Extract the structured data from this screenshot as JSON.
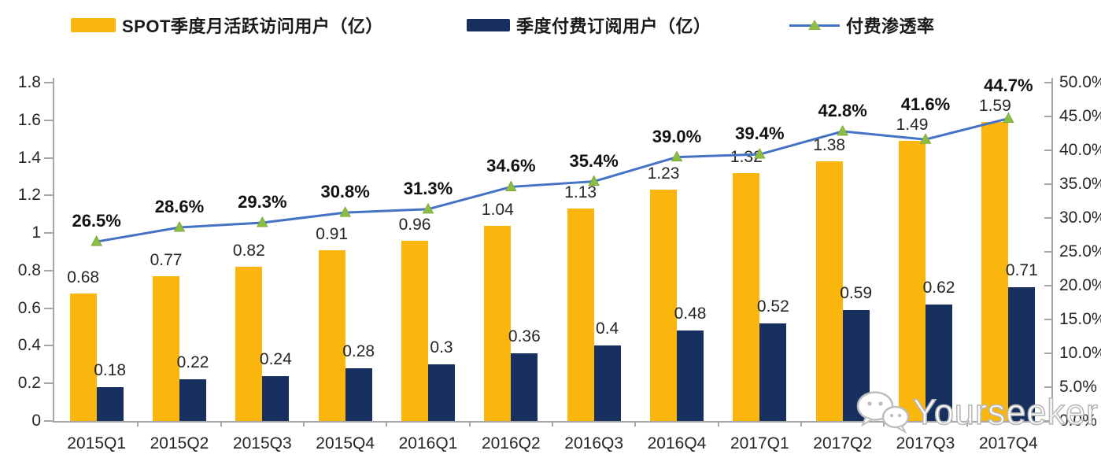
{
  "legend": {
    "items": [
      {
        "label": "SPOT季度月活跃访问用户（亿）",
        "type": "bar-swatch",
        "color": "#FBB60D"
      },
      {
        "label": "季度付费订阅用户（亿）",
        "type": "bar-swatch",
        "color": "#17305F"
      },
      {
        "label": "付费渗透率",
        "type": "line-swatch",
        "line_color": "#4472C4",
        "marker_color": "#8CBE46"
      }
    ]
  },
  "chart_data": {
    "type": "bar+line",
    "categories": [
      "2015Q1",
      "2015Q2",
      "2015Q3",
      "2015Q4",
      "2016Q1",
      "2016Q2",
      "2016Q3",
      "2016Q4",
      "2017Q1",
      "2017Q2",
      "2017Q3",
      "2017Q4"
    ],
    "series": [
      {
        "name": "SPOT季度月活跃访问用户（亿）",
        "type": "bar",
        "axis": "left",
        "color": "#FBB60D",
        "values": [
          0.68,
          0.77,
          0.82,
          0.91,
          0.96,
          1.04,
          1.13,
          1.23,
          1.32,
          1.38,
          1.49,
          1.59
        ],
        "labels": [
          "0.68",
          "0.77",
          "0.82",
          "0.91",
          "0.96",
          "1.04",
          "1.13",
          "1.23",
          "1.32",
          "1.38",
          "1.49",
          "1.59"
        ]
      },
      {
        "name": "季度付费订阅用户（亿）",
        "type": "bar",
        "axis": "left",
        "color": "#17305F",
        "values": [
          0.18,
          0.22,
          0.24,
          0.28,
          0.3,
          0.36,
          0.4,
          0.48,
          0.52,
          0.59,
          0.62,
          0.71
        ],
        "labels": [
          "0.18",
          "0.22",
          "0.24",
          "0.28",
          "0.3",
          "0.36",
          "0.4",
          "0.48",
          "0.52",
          "0.59",
          "0.62",
          "0.71"
        ]
      },
      {
        "name": "付费渗透率",
        "type": "line",
        "axis": "right",
        "line_color": "#4472C4",
        "marker_color": "#8CBE46",
        "marker_shape": "triangle",
        "values": [
          26.5,
          28.6,
          29.3,
          30.8,
          31.3,
          34.6,
          35.4,
          39.0,
          39.4,
          42.8,
          41.6,
          44.7
        ],
        "labels": [
          "26.5%",
          "28.6%",
          "29.3%",
          "30.8%",
          "31.3%",
          "34.6%",
          "35.4%",
          "39.0%",
          "39.4%",
          "42.8%",
          "41.6%",
          "44.7%"
        ]
      }
    ],
    "left_axis": {
      "min": 0,
      "max": 1.8,
      "step": 0.2,
      "tick_labels": [
        "1.8",
        "1.6",
        "1.4",
        "1.2",
        "1",
        "0.8",
        "0.6",
        "0.4",
        "0.2",
        "0"
      ]
    },
    "right_axis": {
      "min": 0,
      "max": 50,
      "step": 5,
      "tick_labels": [
        "50.0%",
        "45.0%",
        "40.0%",
        "35.0%",
        "30.0%",
        "25.0%",
        "20.0%",
        "15.0%",
        "10.0%",
        "5.0%",
        "0.0%"
      ]
    },
    "grid": "off",
    "legend_position": "top"
  },
  "watermark": {
    "text": "Yourseeker",
    "icon": "wechat-chat-bubbles-icon"
  }
}
